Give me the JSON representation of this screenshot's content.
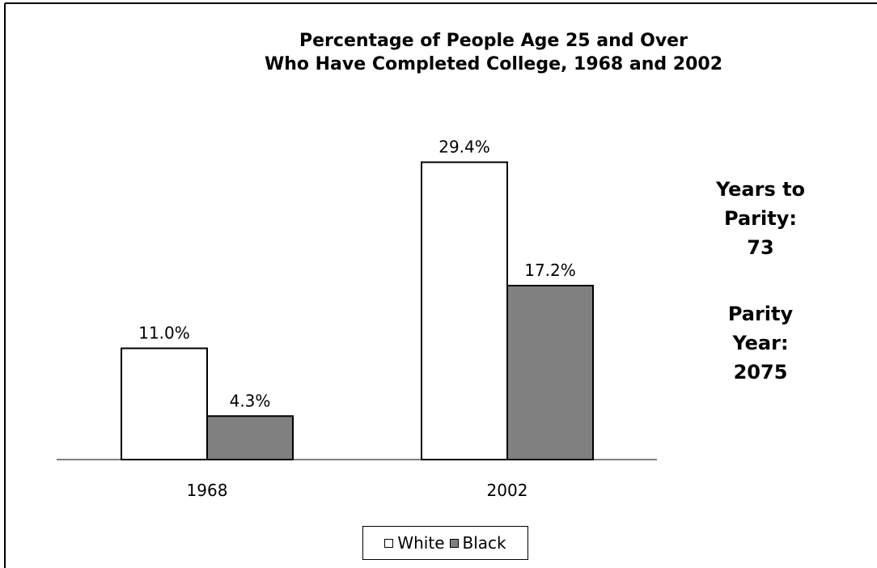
{
  "colors": {
    "background": "#ffffff",
    "frame": "#000000",
    "white_series": "#ffffff",
    "black_series": "#808080"
  },
  "chart_data": {
    "type": "bar",
    "title_lines": [
      "Percentage of People Age 25 and Over",
      "Who Have Completed College, 1968 and 2002"
    ],
    "categories": [
      "1968",
      "2002"
    ],
    "series": [
      {
        "name": "White",
        "values": [
          11.0,
          29.4
        ],
        "labels": [
          "11.0%",
          "29.4%"
        ],
        "color": "#ffffff"
      },
      {
        "name": "Black",
        "values": [
          4.3,
          17.2
        ],
        "labels": [
          "4.3%",
          "17.2%"
        ],
        "color": "#808080"
      }
    ],
    "ylim": [
      0,
      32
    ],
    "grid": false,
    "legend": "bottom",
    "annotations": [
      {
        "lines": [
          "Years to",
          "Parity:",
          "73"
        ]
      },
      {
        "lines": [
          "Parity",
          "Year:",
          "2075"
        ]
      }
    ]
  }
}
